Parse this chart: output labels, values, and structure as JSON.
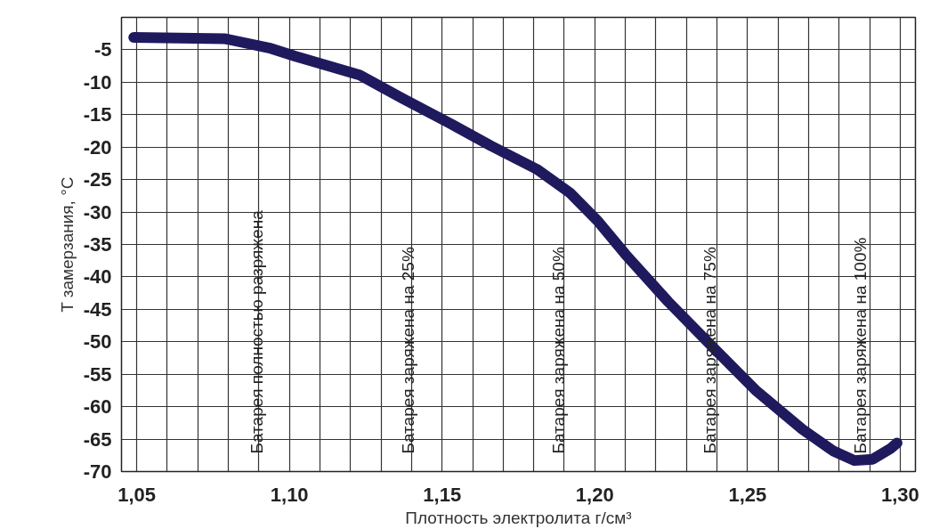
{
  "chart_data": {
    "type": "line",
    "xlabel": "Плотность электролита г/см³",
    "ylabel": "T замерзания, °C",
    "series": [
      {
        "color": "#1f1a5e",
        "x": [
          1.049,
          1.079,
          1.094,
          1.102,
          1.123,
          1.137,
          1.152,
          1.166,
          1.181,
          1.192,
          1.201,
          1.21,
          1.224,
          1.239,
          1.253,
          1.268,
          1.278,
          1.285,
          1.291,
          1.297,
          1.299
        ],
        "values": [
          -3.1,
          -3.3,
          -4.8,
          -6,
          -8.9,
          -12.5,
          -16.2,
          -19.8,
          -23.4,
          -27.1,
          -31.4,
          -36.5,
          -43.8,
          -51,
          -57.6,
          -63.5,
          -66.8,
          -68.3,
          -68.1,
          -66.4,
          -65.6
        ]
      }
    ],
    "xlim": [
      1.045,
      1.305
    ],
    "ylim": [
      -70,
      0
    ],
    "xticks": [
      {
        "value": 1.05,
        "label": "1,05"
      },
      {
        "value": 1.06,
        "label": null
      },
      {
        "value": 1.07,
        "label": null
      },
      {
        "value": 1.08,
        "label": null
      },
      {
        "value": 1.09,
        "label": null
      },
      {
        "value": 1.1,
        "label": "1,10"
      },
      {
        "value": 1.11,
        "label": null
      },
      {
        "value": 1.12,
        "label": null
      },
      {
        "value": 1.13,
        "label": null
      },
      {
        "value": 1.14,
        "label": null
      },
      {
        "value": 1.15,
        "label": "1,15"
      },
      {
        "value": 1.16,
        "label": null
      },
      {
        "value": 1.17,
        "label": null
      },
      {
        "value": 1.18,
        "label": null
      },
      {
        "value": 1.19,
        "label": null
      },
      {
        "value": 1.2,
        "label": "1,20"
      },
      {
        "value": 1.21,
        "label": null
      },
      {
        "value": 1.22,
        "label": null
      },
      {
        "value": 1.23,
        "label": null
      },
      {
        "value": 1.24,
        "label": null
      },
      {
        "value": 1.25,
        "label": "1,25"
      },
      {
        "value": 1.26,
        "label": null
      },
      {
        "value": 1.27,
        "label": null
      },
      {
        "value": 1.28,
        "label": null
      },
      {
        "value": 1.29,
        "label": null
      },
      {
        "value": 1.3,
        "label": "1,30"
      }
    ],
    "yticks": [
      {
        "value": 0,
        "label": null
      },
      -5,
      -10,
      -15,
      -20,
      -25,
      -30,
      -35,
      -40,
      -45,
      -50,
      -55,
      -60,
      -65,
      -70
    ],
    "grid": true,
    "marker": "none",
    "line_style": "solid",
    "annotations": [
      "Батарея полностью разряжена",
      "Батарея заряжена на 25%",
      "Батарея заряжена на 50%",
      "Батарея заряжена на 75%",
      "Батарея заряжена на 100%"
    ]
  }
}
